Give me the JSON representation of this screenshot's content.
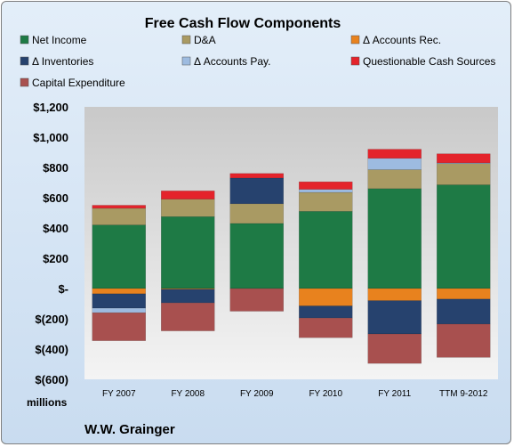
{
  "chart_data": {
    "type": "bar",
    "stacked": true,
    "title": "Free Cash Flow Components",
    "units_label": "millions",
    "company": "W.W. Grainger",
    "categories": [
      "FY 2007",
      "FY 2008",
      "FY 2009",
      "FY 2010",
      "FY 2011",
      "TTM 9-2012"
    ],
    "ylim": [
      -600,
      1200
    ],
    "yticks": [
      -600,
      -400,
      -200,
      0,
      200,
      400,
      600,
      800,
      1000,
      1200
    ],
    "ytick_labels": [
      "$(600)",
      "$(400)",
      "$(200)",
      "$-",
      "$200",
      "$400",
      "$600",
      "$800",
      "$1,000",
      "$1,200"
    ],
    "grid": false,
    "legend_position": "top",
    "series": [
      {
        "name": "Net Income",
        "color": "#1e7a45",
        "values": [
          420,
          475,
          430,
          510,
          660,
          685
        ]
      },
      {
        "name": "D&A",
        "color": "#a99a63",
        "values": [
          110,
          115,
          130,
          125,
          125,
          140
        ]
      },
      {
        "name": "Δ Accounts Rec.",
        "color": "#e8821e",
        "values": [
          -35,
          -5,
          0,
          -115,
          -80,
          -70
        ]
      },
      {
        "name": "Δ Inventories",
        "color": "#26426e",
        "values": [
          -95,
          -90,
          170,
          -80,
          -220,
          -165
        ]
      },
      {
        "name": "Δ Accounts Pay.",
        "color": "#9dbbe0",
        "values": [
          -30,
          0,
          0,
          20,
          75,
          5
        ]
      },
      {
        "name": "Questionable Cash Sources",
        "color": "#e4232b",
        "values": [
          20,
          55,
          30,
          50,
          60,
          60
        ]
      },
      {
        "name": "Capital Expenditure",
        "color": "#a8504f",
        "values": [
          -185,
          -185,
          -150,
          -130,
          -195,
          -220
        ]
      }
    ]
  }
}
